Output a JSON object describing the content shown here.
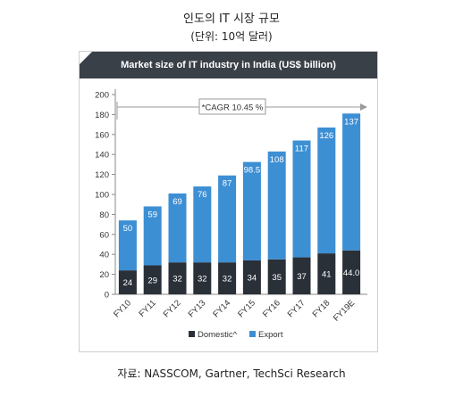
{
  "page": {
    "title": "인도의 IT 시장 규모",
    "subtitle": "(단위: 10억 달러)",
    "source": "자료: NASSCOM, Gartner, TechSci Research"
  },
  "chart_data": {
    "type": "bar",
    "stacked": true,
    "title": "Market size of IT industry in India (US$ billion)",
    "categories": [
      "FY10",
      "FY11",
      "FY12",
      "FY13",
      "FY14",
      "FY15",
      "FY16",
      "FY17",
      "FY18",
      "FY19E"
    ],
    "series": [
      {
        "name": "Domestic^",
        "color": "#2a3038",
        "values": [
          24,
          29,
          32,
          32,
          32,
          34,
          35,
          37,
          41,
          44.0
        ],
        "labels": [
          "24",
          "29",
          "32",
          "32",
          "32",
          "34",
          "35",
          "37",
          "41",
          "44.0"
        ]
      },
      {
        "name": "Export",
        "color": "#3d8fd4",
        "values": [
          50,
          59,
          69,
          76,
          87,
          98.5,
          108,
          117,
          126,
          137
        ],
        "labels": [
          "50",
          "59",
          "69",
          "76",
          "87",
          "98.5",
          "108",
          "117",
          "126",
          "137"
        ]
      }
    ],
    "ylim": [
      0,
      200
    ],
    "yticks": [
      0,
      20,
      40,
      60,
      80,
      100,
      120,
      140,
      160,
      180,
      200
    ],
    "grid": false,
    "legend": "bottom",
    "annotation": "*CAGR 10.45 %",
    "colors": {
      "header_bg": "#3a4048",
      "axis": "#888888"
    }
  }
}
